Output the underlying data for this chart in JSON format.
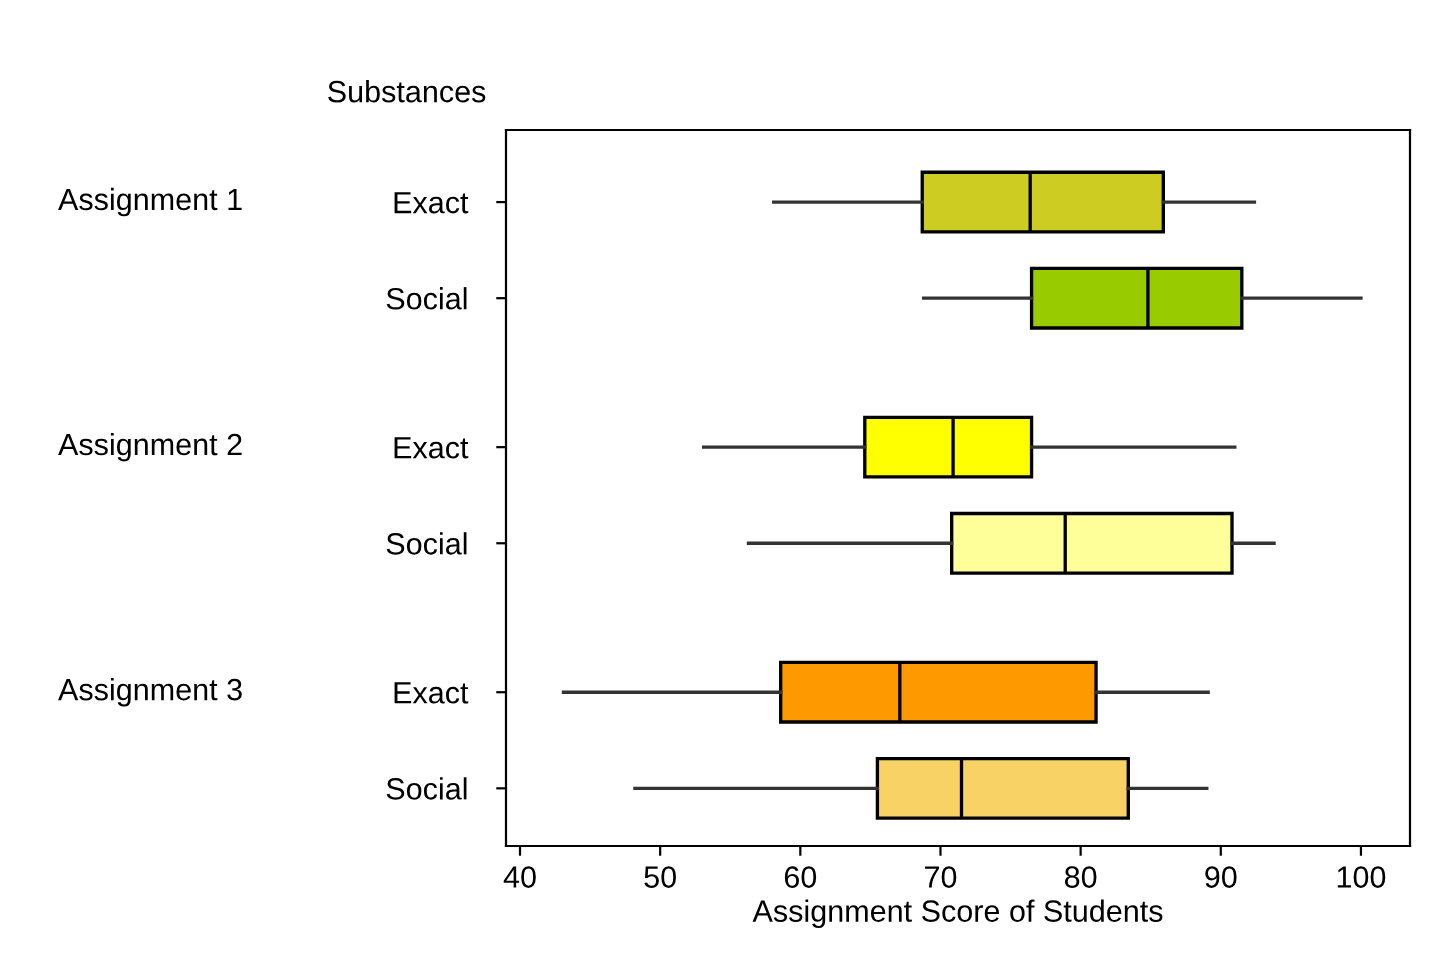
{
  "chart_data": {
    "type": "box",
    "orientation": "horizontal",
    "xlabel": "Assignment Score of Students",
    "ylabel": "Substances",
    "categories": [
      "Exact",
      "Social",
      "Exact",
      "Social",
      "Exact",
      "Social"
    ],
    "annotations": [
      "Assignment 1",
      "Assignment 2",
      "Assignment 3"
    ],
    "colors": [
      "#cccc22",
      "#99cc00",
      "#ffff00",
      "#ffff99",
      "#ff9900",
      "#f9d266"
    ],
    "boxes": [
      {
        "low": 58.1,
        "q1": 68.7,
        "median": 76.4,
        "q3": 85.9,
        "high": 92.4
      },
      {
        "low": 68.8,
        "q1": 76.5,
        "median": 84.8,
        "q3": 91.5,
        "high": 100
      },
      {
        "low": 53.1,
        "q1": 64.6,
        "median": 70.9,
        "q3": 76.5,
        "high": 91.0
      },
      {
        "low": 56.3,
        "q1": 70.8,
        "median": 78.9,
        "q3": 90.8,
        "high": 93.8
      },
      {
        "low": 43.1,
        "q1": 58.6,
        "median": 67.1,
        "q3": 81.1,
        "high": 89.1
      },
      {
        "low": 48.2,
        "q1": 65.5,
        "median": 71.5,
        "q3": 83.4,
        "high": 89.0
      }
    ],
    "xlim": [
      39,
      103.5
    ],
    "xticks": [
      40,
      50,
      60,
      70,
      80,
      90,
      100
    ],
    "grid": false,
    "legend": false
  }
}
